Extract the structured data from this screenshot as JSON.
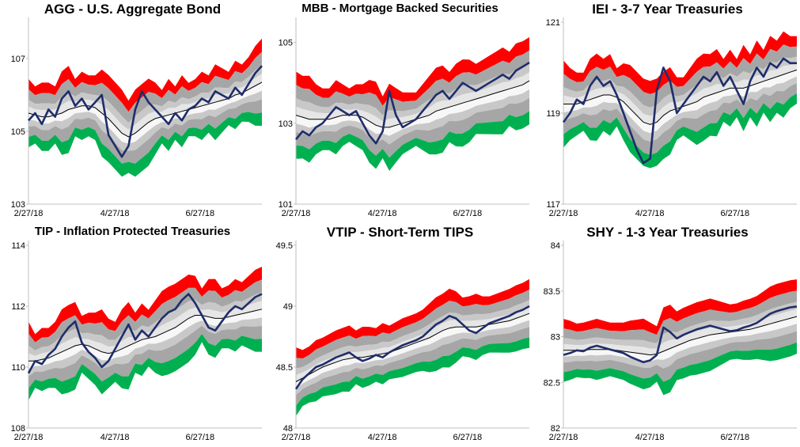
{
  "colors": {
    "red": "#ff0000",
    "darkgray": "#a6a6a6",
    "midgray": "#c8c8c8",
    "lightgray": "#e6e6e6",
    "lightestgray": "#f7f7f7",
    "green": "#00b050",
    "price": "#1f2d6b",
    "sma": "#000000",
    "axis": "#bfbfbf"
  },
  "chart_data": [
    {
      "type": "line",
      "title": "AGG - U.S. Aggregate Bond",
      "x_tick_labels": [
        "2/27/18",
        "4/27/18",
        "6/27/18"
      ],
      "ylim": [
        103,
        108
      ],
      "yticks": [
        103,
        105,
        107
      ],
      "series": [
        {
          "name": "price",
          "values": [
            105.3,
            105.5,
            105.2,
            105.6,
            105.4,
            105.9,
            106.1,
            105.7,
            105.9,
            105.6,
            105.8,
            106.0,
            104.9,
            104.6,
            104.3,
            104.6,
            105.6,
            106.1,
            105.8,
            105.6,
            105.4,
            105.2,
            105.5,
            105.3,
            105.6,
            105.7,
            105.9,
            105.8,
            106.1,
            106.0,
            105.9,
            106.2,
            106.0,
            106.3,
            106.6,
            106.8
          ]
        },
        {
          "name": "trend",
          "values": [
            105.5,
            105.45,
            105.4,
            105.4,
            105.45,
            105.5,
            105.6,
            105.65,
            105.7,
            105.7,
            105.65,
            105.5,
            105.35,
            105.15,
            104.95,
            104.85,
            104.95,
            105.1,
            105.25,
            105.35,
            105.4,
            105.45,
            105.5,
            105.55,
            105.6,
            105.65,
            105.7,
            105.75,
            105.8,
            105.85,
            105.9,
            106.0,
            106.05,
            106.15,
            106.25,
            106.35
          ]
        }
      ]
    },
    {
      "type": "line",
      "title": "MBB - Mortgage Backed Securities",
      "x_tick_labels": [
        "2/27/18",
        "4/27/18",
        "6/27/18"
      ],
      "ylim": [
        101,
        105.5
      ],
      "yticks": [
        101,
        103,
        105
      ],
      "series": [
        {
          "name": "price",
          "values": [
            102.6,
            102.8,
            102.7,
            102.9,
            103.0,
            103.2,
            103.4,
            103.3,
            103.2,
            103.3,
            103.0,
            102.7,
            102.5,
            102.8,
            103.8,
            103.2,
            102.9,
            103.0,
            103.1,
            103.3,
            103.5,
            103.7,
            103.8,
            103.6,
            103.8,
            104.0,
            103.9,
            103.8,
            103.9,
            104.0,
            104.1,
            104.2,
            104.1,
            104.3,
            104.4,
            104.5
          ]
        },
        {
          "name": "trend",
          "values": [
            103.2,
            103.15,
            103.1,
            103.1,
            103.1,
            103.1,
            103.15,
            103.2,
            103.2,
            103.2,
            103.15,
            103.05,
            102.95,
            102.9,
            102.9,
            102.95,
            103.0,
            103.05,
            103.1,
            103.15,
            103.2,
            103.3,
            103.35,
            103.4,
            103.45,
            103.5,
            103.55,
            103.6,
            103.65,
            103.7,
            103.75,
            103.8,
            103.85,
            103.9,
            103.95,
            104.05
          ]
        }
      ]
    },
    {
      "type": "line",
      "title": "IEI - 3-7 Year Treasuries",
      "x_tick_labels": [
        "2/27/18",
        "4/27/18",
        "6/27/18"
      ],
      "ylim": [
        117,
        121
      ],
      "yticks": [
        117,
        119,
        121
      ],
      "series": [
        {
          "name": "price",
          "values": [
            118.8,
            119.0,
            119.3,
            119.2,
            119.6,
            119.8,
            119.6,
            119.7,
            119.4,
            119.0,
            118.6,
            118.2,
            117.9,
            118.0,
            119.5,
            120.0,
            119.7,
            119.0,
            119.2,
            119.4,
            119.6,
            119.8,
            119.7,
            119.9,
            119.6,
            119.8,
            119.5,
            119.2,
            119.7,
            120.0,
            119.8,
            120.1,
            120.0,
            120.2,
            120.1,
            120.1
          ]
        },
        {
          "name": "trend",
          "values": [
            119.2,
            119.2,
            119.2,
            119.25,
            119.3,
            119.35,
            119.4,
            119.4,
            119.35,
            119.25,
            119.1,
            118.95,
            118.8,
            118.75,
            118.8,
            118.95,
            119.05,
            119.1,
            119.15,
            119.2,
            119.25,
            119.35,
            119.4,
            119.45,
            119.5,
            119.55,
            119.55,
            119.55,
            119.6,
            119.65,
            119.7,
            119.75,
            119.8,
            119.85,
            119.9,
            119.95
          ]
        }
      ]
    },
    {
      "type": "line",
      "title": "TIP - Inflation Protected Treasuries",
      "x_tick_labels": [
        "2/27/18",
        "4/27/18",
        "6/27/18"
      ],
      "ylim": [
        108,
        114
      ],
      "yticks": [
        108,
        110,
        112,
        114
      ],
      "series": [
        {
          "name": "price",
          "values": [
            109.8,
            110.2,
            110.1,
            110.4,
            110.6,
            111.0,
            111.3,
            111.5,
            110.8,
            110.5,
            110.3,
            110.0,
            110.2,
            110.6,
            111.0,
            111.4,
            110.9,
            111.2,
            111.0,
            111.3,
            111.6,
            111.8,
            111.9,
            112.2,
            112.4,
            112.1,
            111.7,
            111.3,
            111.2,
            111.5,
            111.8,
            112.0,
            111.9,
            112.1,
            112.3,
            112.4
          ]
        },
        {
          "name": "trend",
          "values": [
            110.2,
            110.2,
            110.25,
            110.3,
            110.4,
            110.5,
            110.6,
            110.7,
            110.75,
            110.7,
            110.6,
            110.5,
            110.45,
            110.5,
            110.6,
            110.7,
            110.8,
            110.9,
            110.95,
            111.0,
            111.1,
            111.2,
            111.3,
            111.45,
            111.6,
            111.7,
            111.7,
            111.65,
            111.6,
            111.6,
            111.65,
            111.7,
            111.75,
            111.8,
            111.85,
            111.9
          ]
        }
      ]
    },
    {
      "type": "line",
      "title": "VTIP - Short-Term TIPS",
      "x_tick_labels": [
        "2/27/18",
        "4/27/18",
        "6/27/18"
      ],
      "ylim": [
        48,
        49.5
      ],
      "yticks": [
        48,
        48.5,
        49,
        49.5
      ],
      "series": [
        {
          "name": "price",
          "values": [
            48.32,
            48.4,
            48.45,
            48.5,
            48.52,
            48.55,
            48.58,
            48.6,
            48.62,
            48.58,
            48.55,
            48.57,
            48.6,
            48.58,
            48.62,
            48.65,
            48.68,
            48.7,
            48.72,
            48.75,
            48.8,
            48.85,
            48.88,
            48.92,
            48.9,
            48.85,
            48.8,
            48.78,
            48.82,
            48.86,
            48.88,
            48.9,
            48.92,
            48.95,
            48.97,
            49.0
          ]
        },
        {
          "name": "trend",
          "values": [
            48.38,
            48.41,
            48.44,
            48.47,
            48.5,
            48.52,
            48.54,
            48.56,
            48.57,
            48.58,
            48.58,
            48.59,
            48.6,
            48.61,
            48.62,
            48.64,
            48.66,
            48.68,
            48.7,
            48.72,
            48.74,
            48.77,
            48.8,
            48.82,
            48.83,
            48.83,
            48.83,
            48.83,
            48.84,
            48.85,
            48.86,
            48.87,
            48.88,
            48.9,
            48.92,
            48.94
          ]
        }
      ]
    },
    {
      "type": "line",
      "title": "SHY - 1-3 Year Treasuries",
      "x_tick_labels": [
        "2/27/18",
        "4/27/18",
        "6/27/18"
      ],
      "ylim": [
        82,
        84
      ],
      "yticks": [
        82,
        82.5,
        83,
        83.5,
        84
      ],
      "series": [
        {
          "name": "price",
          "values": [
            82.8,
            82.82,
            82.85,
            82.84,
            82.88,
            82.9,
            82.88,
            82.86,
            82.84,
            82.82,
            82.78,
            82.75,
            82.72,
            82.74,
            82.8,
            83.1,
            83.05,
            82.98,
            83.02,
            83.05,
            83.08,
            83.1,
            83.12,
            83.1,
            83.08,
            83.06,
            83.07,
            83.1,
            83.12,
            83.15,
            83.2,
            83.25,
            83.28,
            83.3,
            83.32,
            83.33
          ]
        },
        {
          "name": "trend",
          "values": [
            82.85,
            82.85,
            82.85,
            82.85,
            82.86,
            82.86,
            82.86,
            82.86,
            82.85,
            82.84,
            82.83,
            82.82,
            82.81,
            82.8,
            82.81,
            82.84,
            82.87,
            82.9,
            82.93,
            82.96,
            82.98,
            83.0,
            83.02,
            83.03,
            83.04,
            83.05,
            83.06,
            83.07,
            83.08,
            83.1,
            83.12,
            83.14,
            83.16,
            83.18,
            83.2,
            83.22
          ]
        }
      ]
    }
  ]
}
